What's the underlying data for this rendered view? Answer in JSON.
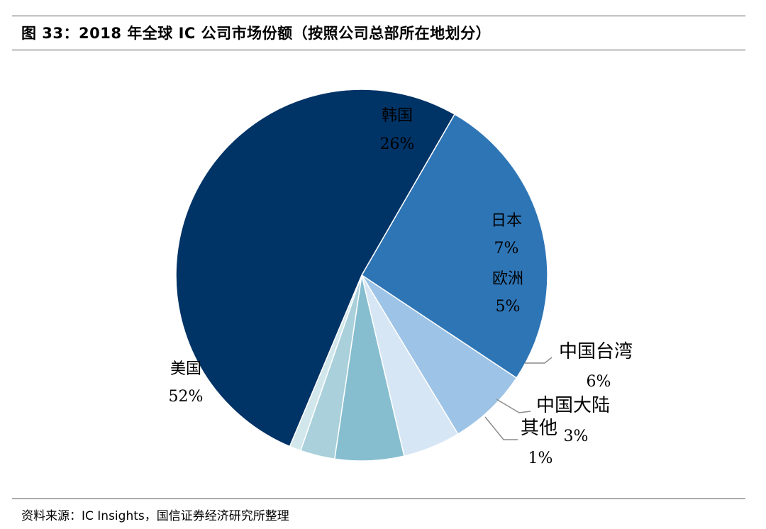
{
  "title": "图 33：2018 年全球 IC 公司市场份额（按照公司总部所在地划分）",
  "source": "资料来源：IC Insights，国信证券经济研究所整理",
  "chart_data": {
    "type": "pie",
    "title": "图 33：2018 年全球 IC 公司市场份额（按照公司总部所在地划分）",
    "slices": [
      {
        "name": "韩国",
        "value": 26,
        "label": "26%",
        "color": "#2E75B6"
      },
      {
        "name": "日本",
        "value": 7,
        "label": "7%",
        "color": "#9DC3E6"
      },
      {
        "name": "欧洲",
        "value": 5,
        "label": "5%",
        "color": "#D6E6F5"
      },
      {
        "name": "中国台湾",
        "value": 6,
        "label": "6%",
        "color": "#86BED0"
      },
      {
        "name": "中国大陆",
        "value": 3,
        "label": "3%",
        "color": "#A9D0DB"
      },
      {
        "name": "其他",
        "value": 1,
        "label": "1%",
        "color": "#D2E7EC"
      },
      {
        "name": "美国",
        "value": 52,
        "label": "52%",
        "color": "#003366"
      }
    ],
    "legend": "none"
  }
}
